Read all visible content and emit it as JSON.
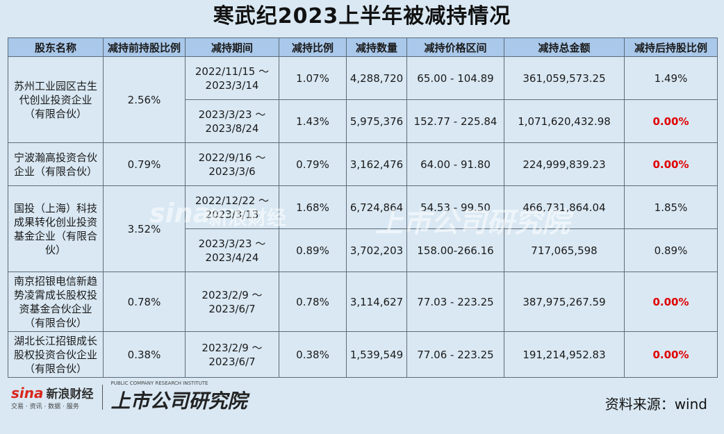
{
  "title": "寒武纪2023上半年被减持情况",
  "headers": [
    "股东名称",
    "减持前持股比例",
    "减持期间",
    "减持比例",
    "减持数量",
    "减持价格区间",
    "减持总金额",
    "减持后持股比例"
  ],
  "groups": [
    {
      "name": "苏州工业园区古生代创业投资企业（有限合伙）",
      "pre_ratio": "2.56%",
      "rows": [
        {
          "period": "2022/11/15～2023/3/14",
          "ratio": "1.07%",
          "qty": "4,288,720",
          "price": "65.00 - 104.89",
          "amount": "361,059,573.25",
          "post": "1.49%",
          "post_red": false
        },
        {
          "period": "2023/3/23～2023/8/24",
          "ratio": "1.43%",
          "qty": "5,975,376",
          "price": "152.77 - 225.84",
          "amount": "1,071,620,432.98",
          "post": "0.00%",
          "post_red": true
        }
      ]
    },
    {
      "name": "宁波瀚高投资合伙企业（有限合伙）",
      "pre_ratio": "0.79%",
      "rows": [
        {
          "period": "2022/9/16～2023/3/6",
          "ratio": "0.79%",
          "qty": "3,162,476",
          "price": "64.00 - 91.80",
          "amount": "224,999,839.23",
          "post": "0.00%",
          "post_red": true
        }
      ]
    },
    {
      "name": "国投（上海）科技成果转化创业投资基金企业（有限合伙）",
      "pre_ratio": "3.52%",
      "rows": [
        {
          "period": "2022/12/22～2023/3/13",
          "ratio": "1.68%",
          "qty": "6,724,864",
          "price": "54.53 - 99.50",
          "amount": "466,731,864.04",
          "post": "1.85%",
          "post_red": false
        },
        {
          "period": "2023/3/23～2023/4/24",
          "ratio": "0.89%",
          "qty": "3,702,203",
          "price": "158.00-266.16",
          "amount": "717,065,598",
          "post": "0.89%",
          "post_red": false
        }
      ]
    },
    {
      "name": "南京招银电信新趋势凌霄成长股权投资基金合伙企业（有限合伙）",
      "pre_ratio": "0.78%",
      "rows": [
        {
          "period": "2023/2/9～2023/6/7",
          "ratio": "0.78%",
          "qty": "3,114,627",
          "price": "77.03 - 223.25",
          "amount": "387,975,267.59",
          "post": "0.00%",
          "post_red": true
        }
      ]
    },
    {
      "name": "湖北长江招银成长股权投资合伙企业（有限合伙）",
      "pre_ratio": "0.38%",
      "rows": [
        {
          "period": "2023/2/9～2023/6/7",
          "ratio": "0.38%",
          "qty": "1,539,549",
          "price": "77.06 - 223.25",
          "amount": "191,214,952.83",
          "post": "0.00%",
          "post_red": true
        }
      ]
    }
  ],
  "footer": {
    "sina_logo": "sina",
    "sina_brand": "新浪财经",
    "sina_sub": "交易 · 资讯 · 数据 · 服务",
    "inst_name": "上市公司研究院",
    "inst_sub": "PUBLIC COMPANY RESEARCH INSTITUTE",
    "source": "资料来源：wind"
  }
}
